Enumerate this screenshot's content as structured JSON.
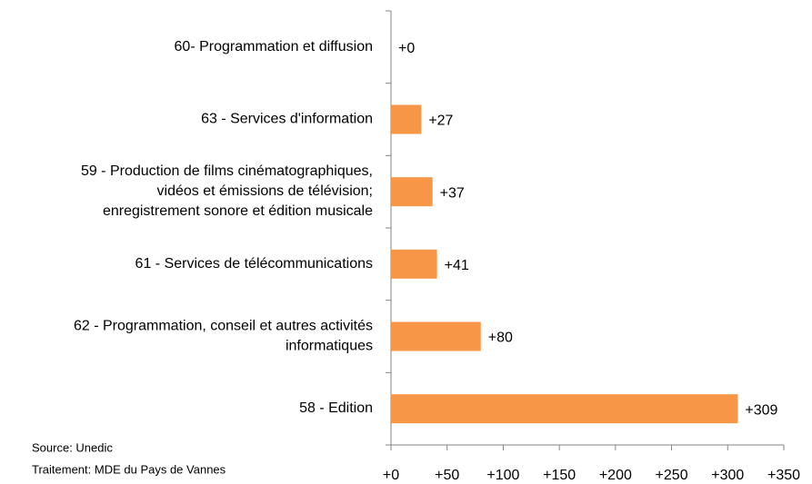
{
  "chart_data": {
    "type": "bar",
    "orientation": "horizontal",
    "categories": [
      "60- Programmation et diffusion",
      "63 - Services d'information",
      "59 - Production de films cinématographiques,\nvidéos et émissions de télévision;\nenregistrement sonore et édition musicale",
      "61 - Services de télécommunications",
      "62 - Programmation, conseil et autres activités\ninformatiques",
      "58 - Edition"
    ],
    "values": [
      0,
      27,
      37,
      41,
      80,
      309
    ],
    "value_labels": [
      "+0",
      "+27",
      "+37",
      "+41",
      "+80",
      "+309"
    ],
    "color": "#f79646",
    "xlim": [
      0,
      350
    ],
    "xticks": [
      {
        "value": 0,
        "label": "+0"
      },
      {
        "value": 50,
        "label": "+50"
      },
      {
        "value": 100,
        "label": "+100"
      },
      {
        "value": 150,
        "label": "+150"
      },
      {
        "value": 200,
        "label": "+200"
      },
      {
        "value": 250,
        "label": "+250"
      },
      {
        "value": 300,
        "label": "+300"
      },
      {
        "value": 350,
        "label": "+350"
      }
    ],
    "notes": [
      "Source: Unedic",
      "Traitement: MDE du Pays de Vannes"
    ]
  }
}
